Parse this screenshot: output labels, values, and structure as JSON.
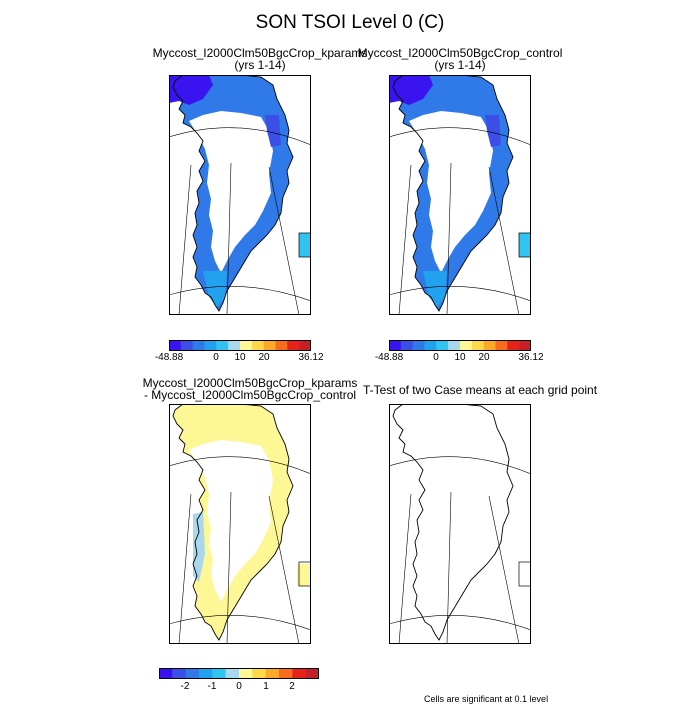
{
  "title": "SON TSOI Level 0 (C)",
  "panels": [
    {
      "id": "kparams",
      "title_line1": "Myccost_I2000Clm50BgcCrop_kparams",
      "title_line2": "(yrs 1-14)"
    },
    {
      "id": "control",
      "title_line1": "Myccost_I2000Clm50BgcCrop_control",
      "title_line2": "(yrs 1-14)"
    },
    {
      "id": "diff",
      "title_line1": "Myccost_I2000Clm50BgcCrop_kparams",
      "title_line2": "- Myccost_I2000Clm50BgcCrop_control"
    },
    {
      "id": "ttest",
      "title_line1": "T-Test of two Case means at each grid point",
      "title_line2": ""
    }
  ],
  "colorbar_main": {
    "colors": [
      "#3a14f0",
      "#3b4fe6",
      "#2f7ae8",
      "#22a2ee",
      "#2fc4f2",
      "#a9d8ee",
      "#fef795",
      "#fdd84b",
      "#fca92a",
      "#f86c1d",
      "#e5231b",
      "#c71f26"
    ],
    "labels": [
      "-48.88",
      "0",
      "10",
      "20",
      "36.12"
    ]
  },
  "colorbar_diff": {
    "colors": [
      "#3a14f0",
      "#3b4fe6",
      "#2f7ae8",
      "#22a2ee",
      "#2fc4f2",
      "#a9d8ee",
      "#fef795",
      "#fdd84b",
      "#fca92a",
      "#f86c1d",
      "#e5231b",
      "#c71f26"
    ],
    "labels": [
      "-2",
      "-1",
      "0",
      "1",
      "2"
    ]
  },
  "footnote": "Cells are significant at 0.1 level"
}
